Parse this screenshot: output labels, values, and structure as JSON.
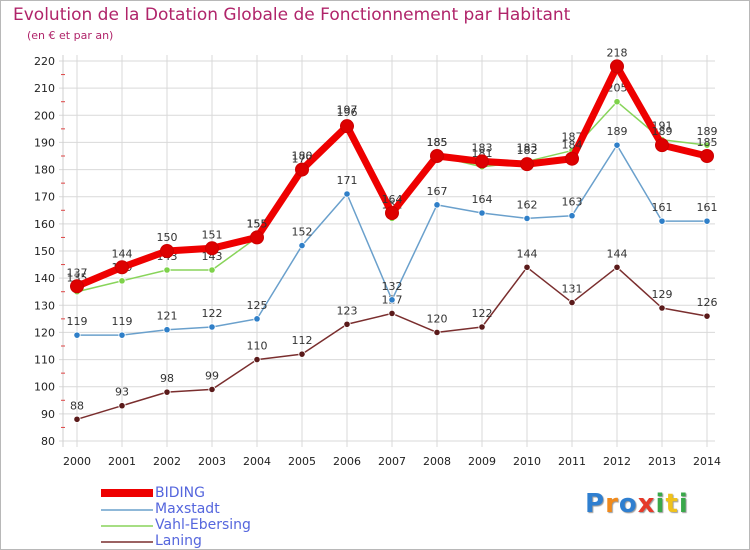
{
  "title": "Evolution de la Dotation Globale de Fonctionnement par Habitant",
  "subtitle": "(en € et par an)",
  "logo": {
    "text": "Proxiti"
  },
  "colors": {
    "title": "#b0246a",
    "legend_text": "#5566dd",
    "grid": "#d9d9d9",
    "axis_text": "#222222"
  },
  "chart_data": {
    "type": "line",
    "title": "Evolution de la Dotation Globale de Fonctionnement par Habitant",
    "subtitle": "(en € et par an)",
    "xlabel": "",
    "ylabel": "",
    "ylim": [
      80,
      220
    ],
    "yticks": [
      80,
      90,
      100,
      110,
      120,
      130,
      140,
      150,
      160,
      170,
      180,
      190,
      200,
      210,
      220
    ],
    "grid": true,
    "legend_position": "bottom-left",
    "x": [
      "2000",
      "2001",
      "2002",
      "2003",
      "2004",
      "2005",
      "2006",
      "2007",
      "2008",
      "2009",
      "2010",
      "2011",
      "2012",
      "2013",
      "2014"
    ],
    "series": [
      {
        "name": "Laning",
        "color": "#7a2e2e",
        "marker": "#5a1a1a",
        "values": [
          88,
          93,
          98,
          99,
          110,
          112,
          123,
          127,
          120,
          122,
          144,
          131,
          144,
          129,
          126
        ]
      },
      {
        "name": "Maxstadt",
        "color": "#6aa0cc",
        "marker": "#2f7fc8",
        "values": [
          119,
          119,
          121,
          122,
          125,
          152,
          171,
          132,
          167,
          164,
          162,
          163,
          189,
          161,
          161
        ]
      },
      {
        "name": "Vahl-Ebersing",
        "color": "#88d45a",
        "marker": "#7ed24a",
        "values": [
          135,
          139,
          143,
          143,
          155,
          179,
          197,
          162,
          185,
          181,
          183,
          187,
          205,
          191,
          189
        ]
      },
      {
        "name": "BIDING",
        "color": "#ee0000",
        "marker": "#dd0000",
        "values": [
          137,
          144,
          150,
          151,
          155,
          180,
          196,
          164,
          185,
          183,
          182,
          184,
          218,
          189,
          185
        ]
      }
    ]
  }
}
